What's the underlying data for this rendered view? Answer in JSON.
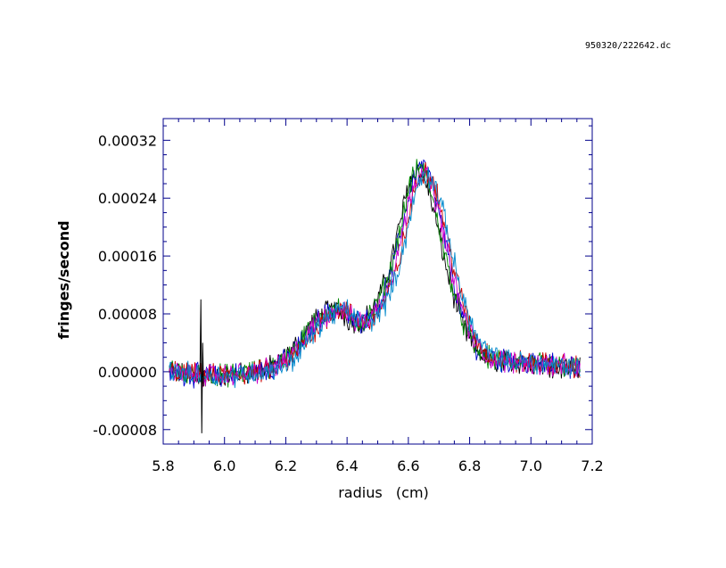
{
  "header_id": "950320/222642.dc",
  "chart_data": {
    "type": "line",
    "xlabel": "radius   (cm)",
    "ylabel": "fringes/second",
    "xlim": [
      5.8,
      7.2
    ],
    "ylim": [
      -0.0001,
      0.00035
    ],
    "x_ticks": [
      "5.8",
      "6.0",
      "6.2",
      "6.4",
      "6.6",
      "6.8",
      "7.0",
      "7.2"
    ],
    "x_tick_values": [
      5.8,
      6.0,
      6.2,
      6.4,
      6.6,
      6.8,
      7.0,
      7.2
    ],
    "y_ticks": [
      "-0.00008",
      "0.00000",
      "0.00008",
      "0.00016",
      "0.00024",
      "0.00032"
    ],
    "y_tick_values": [
      -8e-05,
      0.0,
      8e-05,
      0.00016,
      0.00024,
      0.00032
    ],
    "grid": false,
    "x": [
      5.82,
      5.9,
      6.0,
      6.1,
      6.15,
      6.2,
      6.25,
      6.3,
      6.35,
      6.38,
      6.42,
      6.46,
      6.5,
      6.54,
      6.58,
      6.61,
      6.64,
      6.67,
      6.7,
      6.73,
      6.76,
      6.79,
      6.82,
      6.86,
      6.9,
      7.0,
      7.1,
      7.16
    ],
    "series": [
      {
        "color": "#000000",
        "shift": -0.01,
        "values": [
          0.0,
          -5e-06,
          -5e-06,
          0.0,
          5e-06,
          1.5e-05,
          4e-05,
          7e-05,
          8.5e-05,
          8.5e-05,
          7e-05,
          7e-05,
          9e-05,
          0.00013,
          0.0002,
          0.00026,
          0.00028,
          0.00026,
          0.00021,
          0.00015,
          0.0001,
          6e-05,
          3.5e-05,
          2e-05,
          1.5e-05,
          1.2e-05,
          8e-06,
          5e-06
        ]
      },
      {
        "color": "#0000cc",
        "shift": 0.0,
        "values": [
          0.0,
          -5e-06,
          -5e-06,
          0.0,
          5e-06,
          1.5e-05,
          4e-05,
          7e-05,
          8.5e-05,
          8.5e-05,
          7e-05,
          7e-05,
          9e-05,
          0.00013,
          0.0002,
          0.00026,
          0.00029,
          0.00027,
          0.00022,
          0.00016,
          0.0001,
          6e-05,
          3.5e-05,
          2e-05,
          1.5e-05,
          1.2e-05,
          8e-06,
          5e-06
        ]
      },
      {
        "color": "#008800",
        "shift": -0.005,
        "values": [
          0.0,
          -5e-06,
          -5e-06,
          0.0,
          5e-06,
          1.5e-05,
          4e-05,
          7e-05,
          8.5e-05,
          8.5e-05,
          7e-05,
          7e-05,
          9e-05,
          0.00013,
          0.0002,
          0.00026,
          0.000285,
          0.000265,
          0.00021,
          0.00015,
          0.0001,
          6e-05,
          3.5e-05,
          2e-05,
          1.5e-05,
          1.2e-05,
          8e-06,
          5e-06
        ]
      },
      {
        "color": "#cc0000",
        "shift": 0.015,
        "values": [
          0.0,
          -5e-06,
          -5e-06,
          0.0,
          5e-06,
          1.5e-05,
          4e-05,
          7e-05,
          8.5e-05,
          8.5e-05,
          7e-05,
          7e-05,
          9e-05,
          0.00013,
          0.0002,
          0.00026,
          0.00028,
          0.00026,
          0.00021,
          0.00015,
          0.0001,
          6e-05,
          3.5e-05,
          2e-05,
          1.5e-05,
          1.2e-05,
          8e-06,
          5e-06
        ]
      },
      {
        "color": "#cc00cc",
        "shift": 0.005,
        "values": [
          0.0,
          -5e-06,
          -5e-06,
          0.0,
          5e-06,
          1.5e-05,
          4e-05,
          7e-05,
          8.5e-05,
          8.5e-05,
          7e-05,
          7e-05,
          9e-05,
          0.00013,
          0.0002,
          0.00026,
          0.00028,
          0.00026,
          0.00021,
          0.00015,
          0.0001,
          6e-05,
          3.5e-05,
          2e-05,
          1.5e-05,
          1.2e-05,
          8e-06,
          5e-06
        ]
      },
      {
        "color": "#0088cc",
        "shift": 0.02,
        "values": [
          0.0,
          -5e-06,
          -5e-06,
          0.0,
          5e-06,
          1.5e-05,
          4e-05,
          7e-05,
          8.5e-05,
          8.5e-05,
          7e-05,
          7e-05,
          9e-05,
          0.00013,
          0.0002,
          0.00026,
          0.000275,
          0.000255,
          0.00021,
          0.00015,
          0.0001,
          6e-05,
          3.5e-05,
          2e-05,
          1.5e-05,
          1.2e-05,
          8e-06,
          5e-06
        ]
      }
    ],
    "spike": {
      "x": 5.92,
      "ymin": -8.5e-05,
      "ymax": 0.0001
    },
    "frame_color": "#00008b"
  }
}
